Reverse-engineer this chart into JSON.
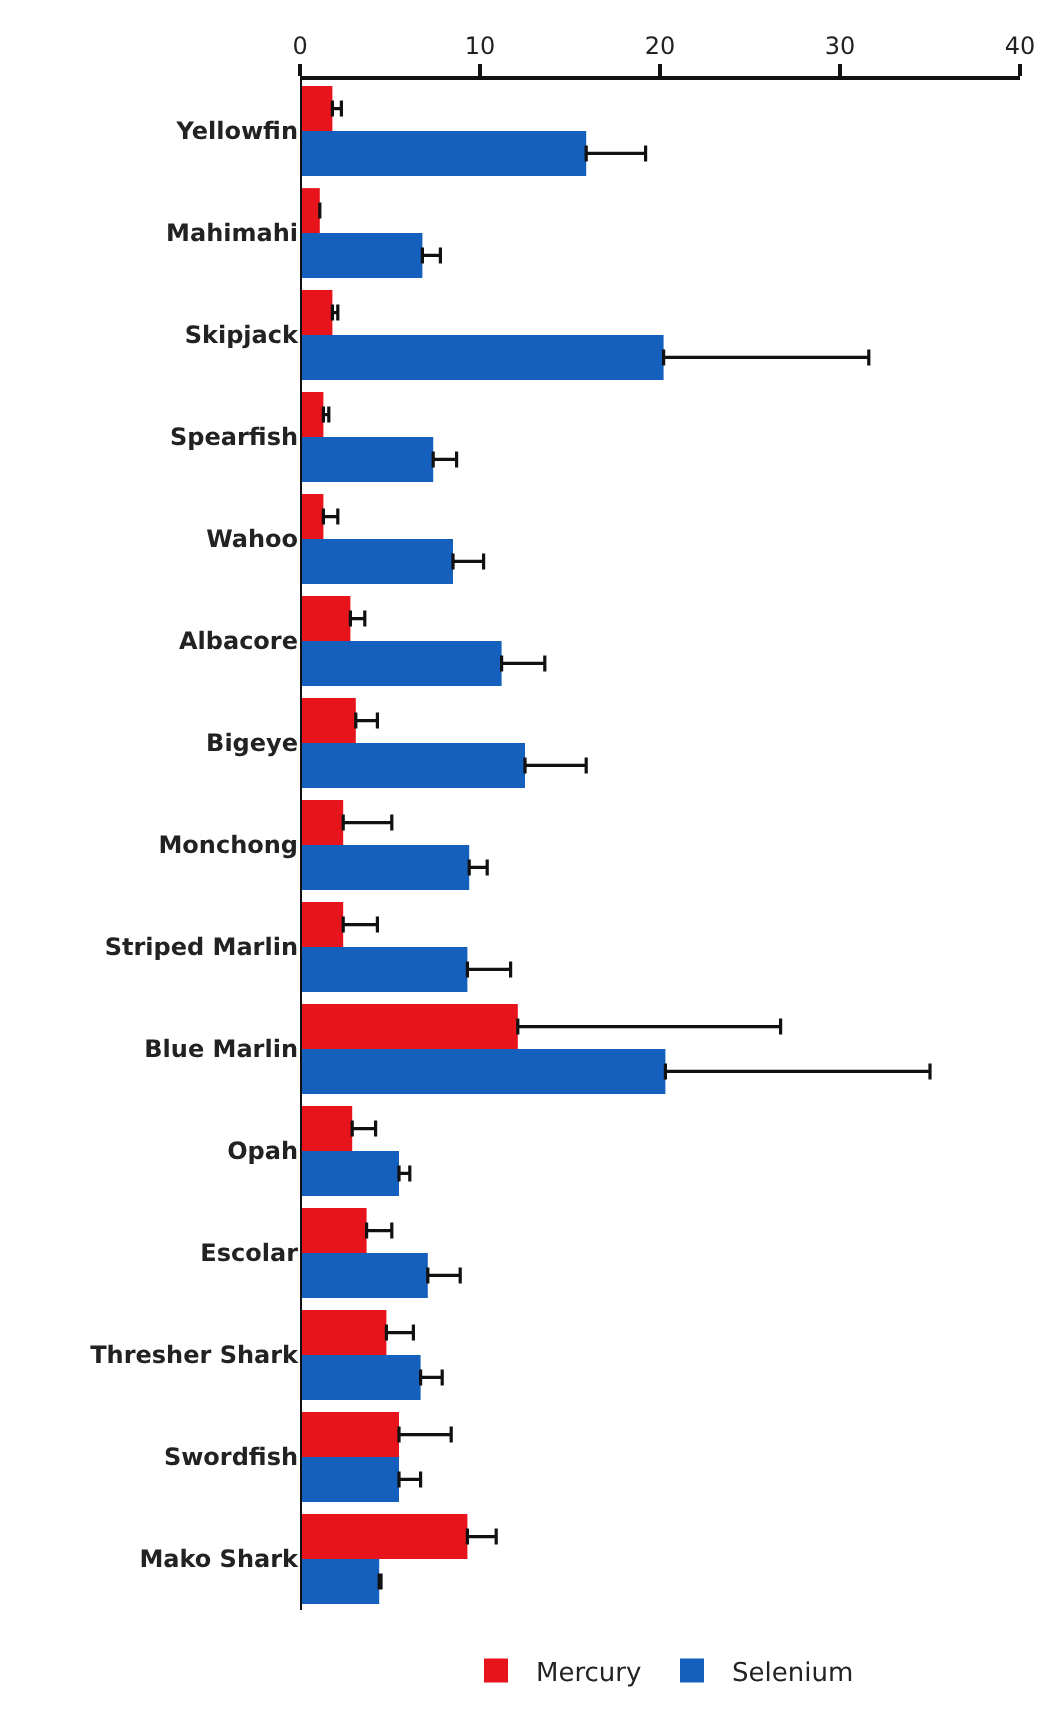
{
  "chart_data": {
    "type": "bar",
    "orientation": "horizontal",
    "categories": [
      "Yellowfin",
      "Mahimahi",
      "Skipjack",
      "Spearfish",
      "Wahoo",
      "Albacore",
      "Bigeye",
      "Monchong",
      "Striped Marlin",
      "Blue Marlin",
      "Opah",
      "Escolar",
      "Thresher Shark",
      "Swordfish",
      "Mako Shark"
    ],
    "series": [
      {
        "name": "Mercury",
        "color": "#e8141c",
        "values": [
          1.8,
          1.1,
          1.8,
          1.3,
          1.3,
          2.8,
          3.1,
          2.4,
          2.4,
          12.1,
          2.9,
          3.7,
          4.8,
          5.5,
          9.3
        ],
        "errors": [
          [
            1.8,
            2.3
          ],
          null,
          [
            1.8,
            2.1
          ],
          [
            1.3,
            1.6
          ],
          [
            1.3,
            2.1
          ],
          [
            2.8,
            3.6
          ],
          [
            3.1,
            4.3
          ],
          [
            2.4,
            5.1
          ],
          [
            2.4,
            4.3
          ],
          [
            12.1,
            26.7
          ],
          [
            2.9,
            4.2
          ],
          [
            3.7,
            5.1
          ],
          [
            4.8,
            6.3
          ],
          [
            5.5,
            8.4
          ],
          [
            9.3,
            10.9
          ]
        ]
      },
      {
        "name": "Selenium",
        "color": "#1560bd",
        "values": [
          15.9,
          6.8,
          20.2,
          7.4,
          8.5,
          11.2,
          12.5,
          9.4,
          9.3,
          20.3,
          5.5,
          7.1,
          6.7,
          5.5,
          4.4
        ],
        "errors": [
          [
            15.9,
            19.2
          ],
          [
            6.8,
            7.8
          ],
          [
            20.2,
            31.6
          ],
          [
            7.4,
            8.7
          ],
          [
            8.5,
            10.2
          ],
          [
            11.2,
            13.6
          ],
          [
            12.5,
            15.9
          ],
          [
            9.4,
            10.4
          ],
          [
            9.3,
            11.7
          ],
          [
            20.3,
            35.0
          ],
          [
            5.5,
            6.1
          ],
          [
            7.1,
            8.9
          ],
          [
            6.7,
            7.9
          ],
          [
            5.5,
            6.7
          ],
          [
            4.4,
            4.5
          ]
        ]
      }
    ],
    "xlim": [
      0,
      40
    ],
    "xticks": [
      0,
      10,
      20,
      30,
      40
    ],
    "legend": "bottom"
  }
}
